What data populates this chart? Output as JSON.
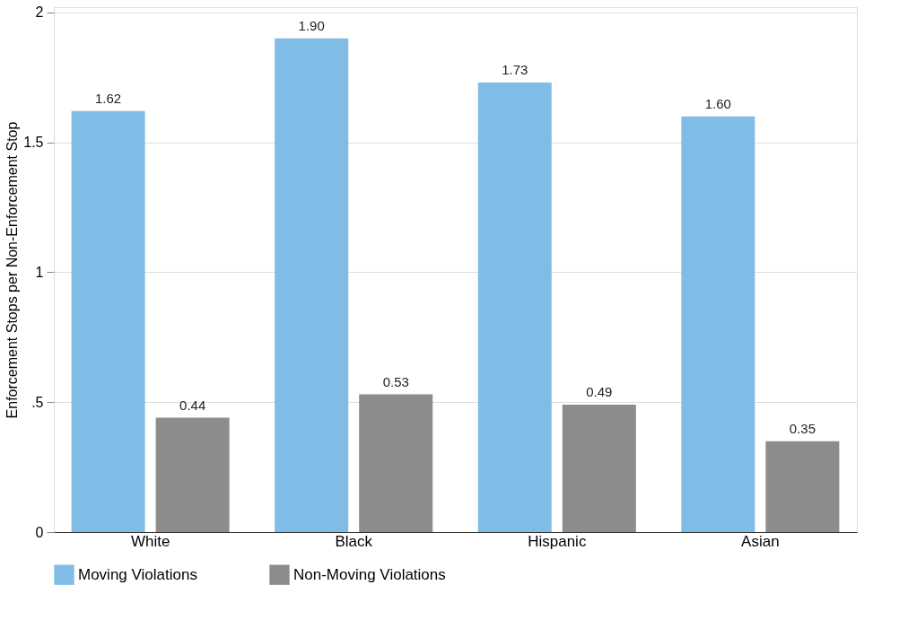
{
  "chart_data": {
    "type": "bar",
    "ylabel": "Enforcement Stops per Non-Enforcement Stop",
    "categories": [
      "White",
      "Black",
      "Hispanic",
      "Asian"
    ],
    "series": [
      {
        "name": "Moving Violations",
        "color": "#80bde6",
        "values": [
          1.62,
          1.9,
          1.73,
          1.6
        ],
        "value_labels": [
          "1.62",
          "1.90",
          "1.73",
          "1.60"
        ]
      },
      {
        "name": "Non-Moving Violations",
        "color": "#8c8c8c",
        "values": [
          0.44,
          0.53,
          0.49,
          0.35
        ],
        "value_labels": [
          "0.44",
          "0.53",
          "0.49",
          "0.35"
        ]
      }
    ],
    "ylim": [
      0,
      2.02
    ],
    "yticks": [
      0,
      {
        "value": 0.5,
        "label": ".5"
      },
      1,
      1.5,
      2
    ],
    "grid": "y",
    "legend": "bottom"
  }
}
